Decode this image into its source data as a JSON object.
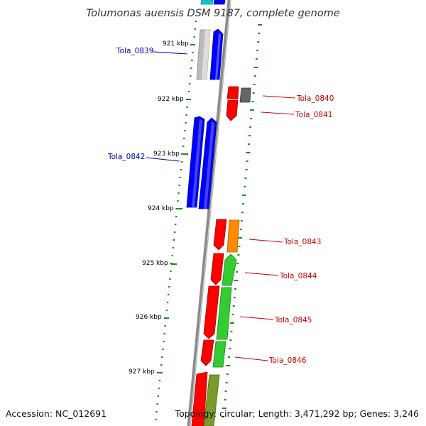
{
  "title": "Tolumonas auensis DSM 9187, complete genome",
  "footer": {
    "accession": "Accession: NC_012691",
    "summary": "Topology: circular; Length: 3,471,292 bp; Genes: 3,246"
  },
  "colors": {
    "backbone": "#8a8a8a",
    "gc_ticks": "#1e8c1e",
    "label_forward": "#0000bb",
    "label_reverse": "#cc0000",
    "blue": "#0000ff",
    "red": "#ff0000",
    "orange": "#ff8c00",
    "green": "#33cc33",
    "gray": "#bbbbbb",
    "darkgray": "#666666",
    "olive": "#7a9a2a",
    "cyan": "#00cccc"
  },
  "scale": [
    "921 kbp",
    "922 kbp",
    "923 kbp",
    "924 kbp",
    "925 kbp",
    "926 kbp",
    "927 kbp"
  ],
  "gene_labels": [
    "Tola_0839",
    "Tola_0840",
    "Tola_0841",
    "Tola_0842",
    "Tola_0843",
    "Tola_0844",
    "Tola_0845",
    "Tola_0846"
  ]
}
